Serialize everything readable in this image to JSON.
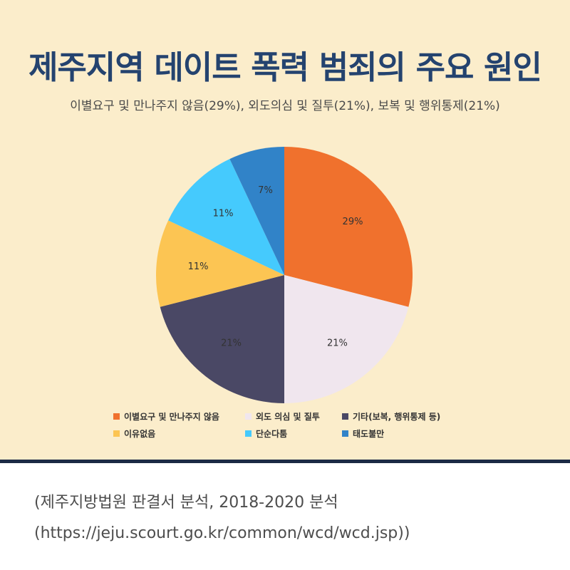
{
  "header": {
    "title": "제주지역 데이트 폭력 범죄의 주요 원인",
    "subtitle": "이별요구 및 만나주지 않음(29%), 외도의심 및 질투(21%), 보복 및 행위통제(21%)"
  },
  "chart_data": {
    "type": "pie",
    "start_angle_deg": 0,
    "direction": "clockwise",
    "slices": [
      {
        "label": "이별요구 및 만나주지 않음",
        "value": 29,
        "display": "29%",
        "color": "#f0712d"
      },
      {
        "label": "외도 의심 및 질투",
        "value": 21,
        "display": "21%",
        "color": "#f0e6ee"
      },
      {
        "label": "기타(보복, 행위통제 등)",
        "value": 21,
        "display": "21%",
        "color": "#4a4865"
      },
      {
        "label": "이유없음",
        "value": 11,
        "display": "11%",
        "color": "#fcc553"
      },
      {
        "label": "단순다툼",
        "value": 11,
        "display": "11%",
        "color": "#45cafd"
      },
      {
        "label": "태도불만",
        "value": 7,
        "display": "7%",
        "color": "#3183c8"
      }
    ],
    "legend_position": "bottom"
  },
  "footer": {
    "source_line": "(제주지방법원 판결서 분석, 2018-2020 분석",
    "url_line": "(https://jeju.scourt.go.kr/common/wcd/wcd.jsp))"
  }
}
